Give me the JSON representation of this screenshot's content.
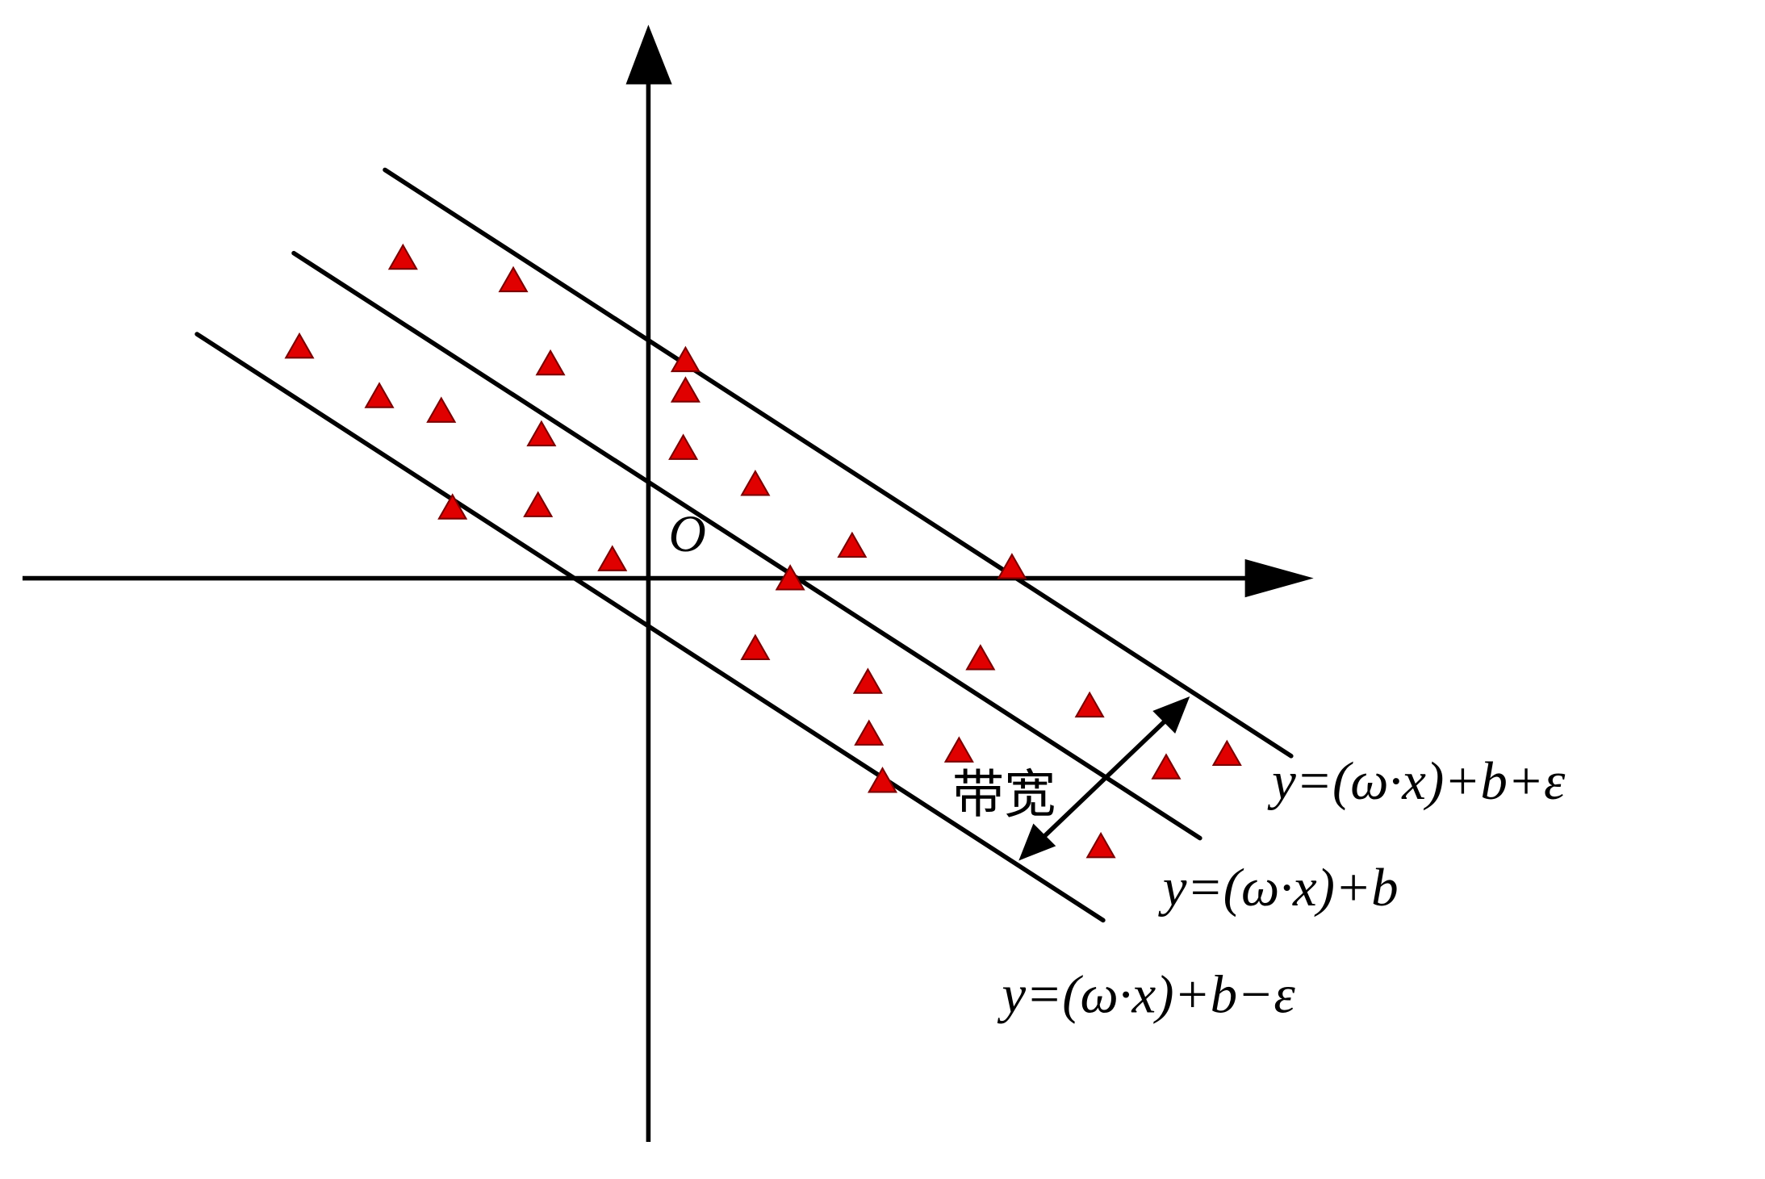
{
  "diagram": {
    "origin_label": "O",
    "bandwidth_label": "带宽",
    "upper_line_label": "y=(ω·x)+b+ε",
    "middle_line_label": "y=(ω·x)+b",
    "lower_line_label": "y=(ω·x)+b−ε",
    "colors": {
      "point_fill": "#e00000",
      "point_stroke": "#7a0000",
      "line": "#000000"
    },
    "point_marker": "triangle"
  }
}
